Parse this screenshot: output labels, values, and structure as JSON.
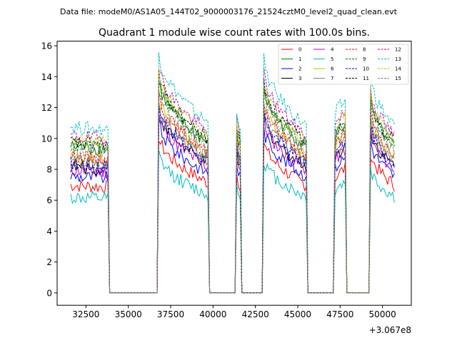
{
  "suptitle": "Data file: modeM0/AS1A05_144T02_9000003176_21524cztM0_level2_quad_clean.evt",
  "chart_data": {
    "type": "line",
    "title": "Quadrant 1 module wise count rates with 100.0s bins.",
    "xlabel": "",
    "ylabel": "",
    "x_offset_label": "+3.067e8",
    "xlim": [
      30800,
      51700
    ],
    "ylim": [
      -0.8,
      16.3
    ],
    "xticks": [
      32500,
      35000,
      37500,
      40000,
      42500,
      45000,
      47500,
      50000
    ],
    "xtick_labels": [
      "32500",
      "35000",
      "37500",
      "40000",
      "42500",
      "45000",
      "47500",
      "50000"
    ],
    "yticks": [
      0,
      2,
      4,
      6,
      8,
      10,
      12,
      14,
      16
    ],
    "ytick_labels": [
      "0",
      "2",
      "4",
      "6",
      "8",
      "10",
      "12",
      "14",
      "16"
    ],
    "bin_seconds": 100,
    "legend_position": "top-right",
    "segments": [
      {
        "x_start": 31600,
        "x_end": 33800,
        "start_level": 1.0,
        "end_level": 0.98
      },
      {
        "x_start": 36800,
        "x_end": 39700,
        "start_level": 1.45,
        "end_level": 1.02
      },
      {
        "x_start": 41400,
        "x_end": 41600,
        "start_level": 1.1,
        "end_level": 1.0
      },
      {
        "x_start": 43000,
        "x_end": 45500,
        "start_level": 1.4,
        "end_level": 1.0
      },
      {
        "x_start": 47200,
        "x_end": 47800,
        "start_level": 1.05,
        "end_level": 1.15
      },
      {
        "x_start": 49300,
        "x_end": 50700,
        "start_level": 1.3,
        "end_level": 1.0
      }
    ],
    "zero_level": 0.0,
    "series": [
      {
        "name": "0",
        "color": "#ff0000",
        "dash": "solid",
        "base_rate": 7.0
      },
      {
        "name": "1",
        "color": "#008000",
        "dash": "solid",
        "base_rate": 9.5
      },
      {
        "name": "2",
        "color": "#0000ff",
        "dash": "solid",
        "base_rate": 7.6
      },
      {
        "name": "3",
        "color": "#000000",
        "dash": "solid",
        "base_rate": 8.2
      },
      {
        "name": "4",
        "color": "#bf00bf",
        "dash": "solid",
        "base_rate": 8.0
      },
      {
        "name": "5",
        "color": "#00bfbf",
        "dash": "solid",
        "base_rate": 6.2
      },
      {
        "name": "6",
        "color": "#bfbf00",
        "dash": "solid",
        "base_rate": 8.8
      },
      {
        "name": "7",
        "color": "#808080",
        "dash": "solid",
        "base_rate": 8.5
      },
      {
        "name": "8",
        "color": "#ff0000",
        "dash": "dashed",
        "base_rate": 8.9
      },
      {
        "name": "9",
        "color": "#008000",
        "dash": "dashed",
        "base_rate": 9.6
      },
      {
        "name": "10",
        "color": "#0000ff",
        "dash": "dashed",
        "base_rate": 8.4
      },
      {
        "name": "11",
        "color": "#000000",
        "dash": "dashed",
        "base_rate": 9.8
      },
      {
        "name": "12",
        "color": "#bf00bf",
        "dash": "dashed",
        "base_rate": 10.2
      },
      {
        "name": "13",
        "color": "#00bfbf",
        "dash": "dashed",
        "base_rate": 10.8
      },
      {
        "name": "14",
        "color": "#bfbf00",
        "dash": "dashed",
        "base_rate": 9.9
      },
      {
        "name": "15",
        "color": "#808080",
        "dash": "dashed",
        "base_rate": 9.2
      }
    ]
  }
}
